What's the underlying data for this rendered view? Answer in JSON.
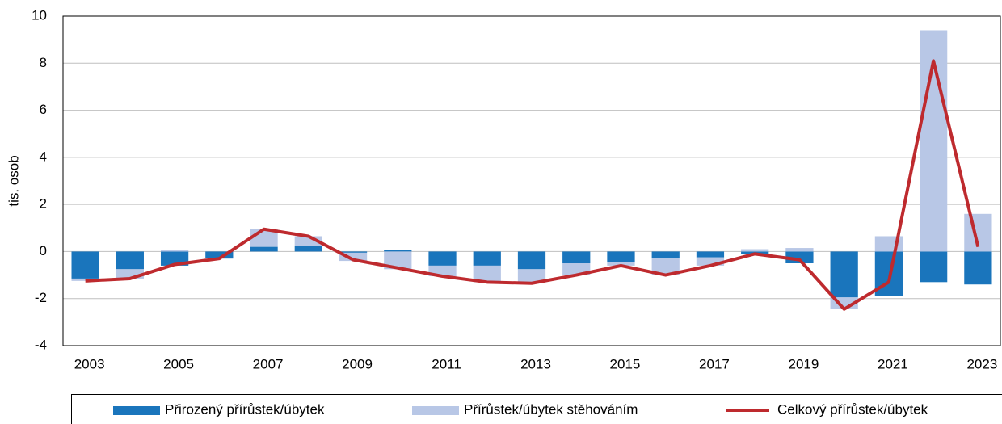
{
  "chart_data": {
    "type": "bar",
    "stacked": true,
    "y_label": "tis. osob",
    "categories": [
      "2003",
      null,
      "2005",
      null,
      "2007",
      null,
      "2009",
      null,
      "2011",
      null,
      "2013",
      null,
      "2015",
      null,
      "2017",
      null,
      "2019",
      null,
      "2021",
      null,
      "2023"
    ],
    "series": [
      {
        "name": "Přirozený přírůstek/úbytek",
        "type": "bar",
        "color": "#1a75bc",
        "values": [
          -1.15,
          -0.75,
          -0.6,
          -0.3,
          0.2,
          0.25,
          -0.05,
          0.05,
          -0.6,
          -0.6,
          -0.75,
          -0.5,
          -0.45,
          -0.3,
          -0.25,
          -0.1,
          -0.5,
          -1.95,
          -1.9,
          -1.3,
          -1.4
        ]
      },
      {
        "name": "Přírůstek/úbytek stěhováním",
        "type": "bar",
        "color": "#b8c7e6",
        "values": [
          -0.1,
          -0.4,
          0.05,
          0,
          0.75,
          0.4,
          -0.35,
          -0.75,
          -0.45,
          -0.7,
          -0.6,
          -0.5,
          -0.15,
          -0.7,
          -0.35,
          0.1,
          0.15,
          -0.5,
          0.65,
          9.4,
          1.6
        ]
      },
      {
        "name": "Celkový přírůstek/úbytek",
        "type": "line",
        "color": "#be2a2e",
        "values": [
          -1.25,
          -1.15,
          -0.55,
          -0.3,
          0.95,
          0.65,
          -0.35,
          -0.7,
          -1.05,
          -1.3,
          -1.35,
          -1.0,
          -0.6,
          -1.0,
          -0.6,
          -0.1,
          -0.35,
          -2.45,
          -1.3,
          8.1,
          0.2
        ]
      }
    ],
    "ylim": [
      -4,
      10
    ],
    "yticks": [
      -4,
      -2,
      0,
      2,
      4,
      6,
      8,
      10
    ],
    "grid": true
  }
}
